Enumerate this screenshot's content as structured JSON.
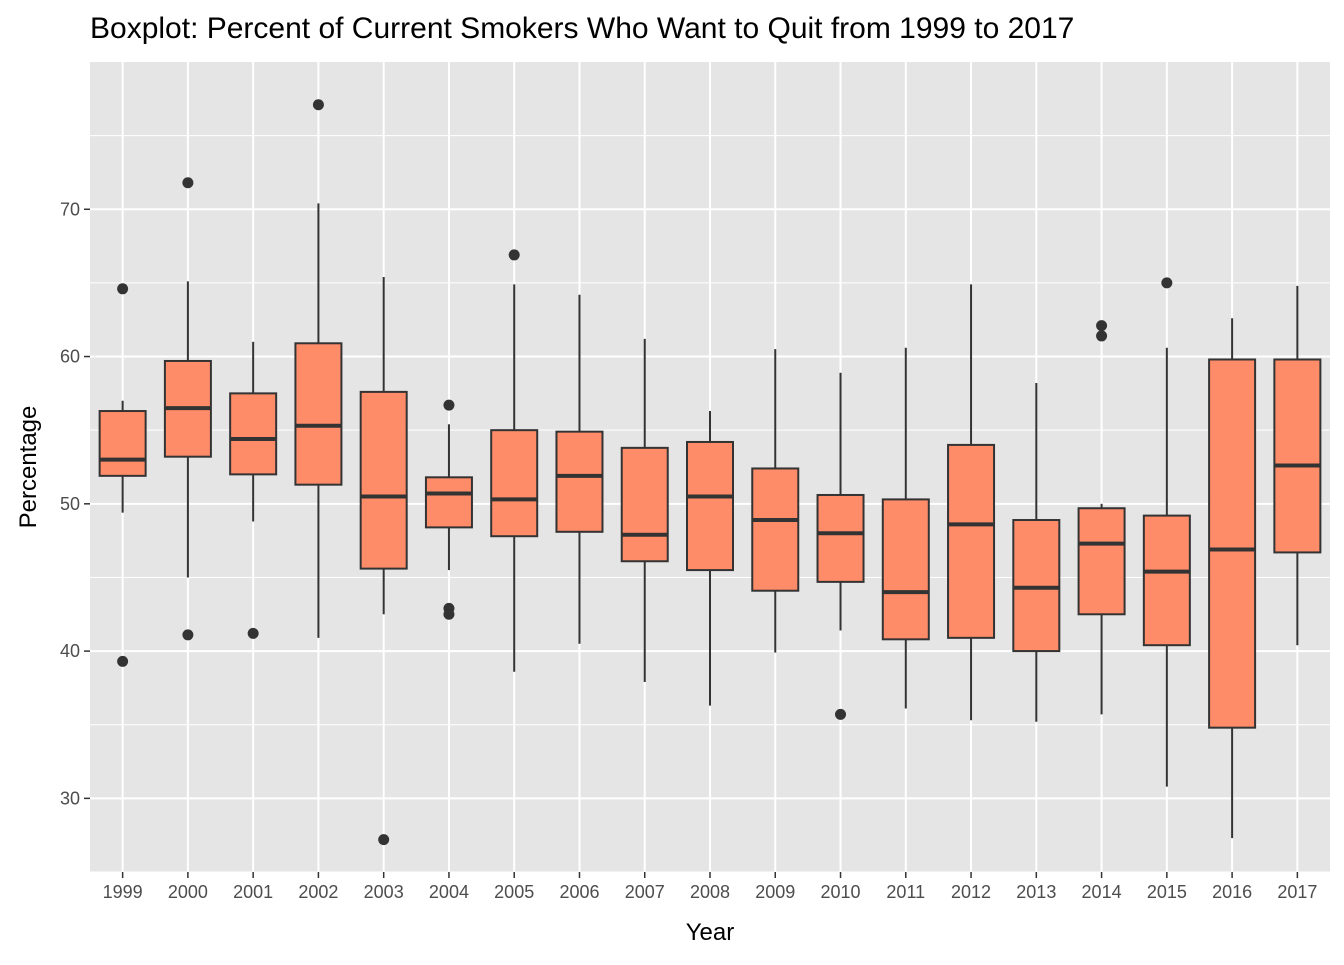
{
  "chart_data": {
    "type": "boxplot",
    "title": "Boxplot: Percent of Current Smokers Who Want to Quit from 1999 to 2017",
    "xlabel": "Year",
    "ylabel": "Percentage",
    "ylim": [
      25,
      80
    ],
    "yticks": [
      30,
      40,
      50,
      60,
      70
    ],
    "grid": true,
    "colors": {
      "panel": "#e5e5e5",
      "box_fill": "#ff8c69",
      "outline": "#333333",
      "grid": "#ffffff"
    },
    "boxes": [
      {
        "category": "1999",
        "whisker_low": 49.4,
        "q1": 51.9,
        "median": 53.0,
        "q3": 56.3,
        "whisker_high": 57.0,
        "outliers": [
          64.6,
          39.3
        ]
      },
      {
        "category": "2000",
        "whisker_low": 45.0,
        "q1": 53.2,
        "median": 56.5,
        "q3": 59.7,
        "whisker_high": 65.1,
        "outliers": [
          71.8,
          41.1
        ]
      },
      {
        "category": "2001",
        "whisker_low": 48.8,
        "q1": 52.0,
        "median": 54.4,
        "q3": 57.5,
        "whisker_high": 61.0,
        "outliers": [
          41.2
        ]
      },
      {
        "category": "2002",
        "whisker_low": 40.9,
        "q1": 51.3,
        "median": 55.3,
        "q3": 60.9,
        "whisker_high": 70.4,
        "outliers": [
          77.1
        ]
      },
      {
        "category": "2003",
        "whisker_low": 42.5,
        "q1": 45.6,
        "median": 50.5,
        "q3": 57.6,
        "whisker_high": 65.4,
        "outliers": [
          27.2
        ]
      },
      {
        "category": "2004",
        "whisker_low": 45.5,
        "q1": 48.4,
        "median": 50.7,
        "q3": 51.8,
        "whisker_high": 55.4,
        "outliers": [
          56.7,
          42.9,
          42.5
        ]
      },
      {
        "category": "2005",
        "whisker_low": 38.6,
        "q1": 47.8,
        "median": 50.3,
        "q3": 55.0,
        "whisker_high": 64.9,
        "outliers": [
          66.9
        ]
      },
      {
        "category": "2006",
        "whisker_low": 40.5,
        "q1": 48.1,
        "median": 51.9,
        "q3": 54.9,
        "whisker_high": 64.2,
        "outliers": []
      },
      {
        "category": "2007",
        "whisker_low": 37.9,
        "q1": 46.1,
        "median": 47.9,
        "q3": 53.8,
        "whisker_high": 61.2,
        "outliers": []
      },
      {
        "category": "2008",
        "whisker_low": 36.3,
        "q1": 45.5,
        "median": 50.5,
        "q3": 54.2,
        "whisker_high": 56.3,
        "outliers": []
      },
      {
        "category": "2009",
        "whisker_low": 39.9,
        "q1": 44.1,
        "median": 48.9,
        "q3": 52.4,
        "whisker_high": 60.5,
        "outliers": []
      },
      {
        "category": "2010",
        "whisker_low": 41.4,
        "q1": 44.7,
        "median": 48.0,
        "q3": 50.6,
        "whisker_high": 58.9,
        "outliers": [
          35.7
        ]
      },
      {
        "category": "2011",
        "whisker_low": 36.1,
        "q1": 40.8,
        "median": 44.0,
        "q3": 50.3,
        "whisker_high": 60.6,
        "outliers": []
      },
      {
        "category": "2012",
        "whisker_low": 35.3,
        "q1": 40.9,
        "median": 48.6,
        "q3": 54.0,
        "whisker_high": 64.9,
        "outliers": []
      },
      {
        "category": "2013",
        "whisker_low": 35.2,
        "q1": 40.0,
        "median": 44.3,
        "q3": 48.9,
        "whisker_high": 58.2,
        "outliers": []
      },
      {
        "category": "2014",
        "whisker_low": 35.7,
        "q1": 42.5,
        "median": 47.3,
        "q3": 49.7,
        "whisker_high": 50.0,
        "outliers": [
          62.1,
          61.4
        ]
      },
      {
        "category": "2015",
        "whisker_low": 30.8,
        "q1": 40.4,
        "median": 45.4,
        "q3": 49.2,
        "whisker_high": 60.6,
        "outliers": [
          65.0
        ]
      },
      {
        "category": "2016",
        "whisker_low": 27.3,
        "q1": 34.8,
        "median": 46.9,
        "q3": 59.8,
        "whisker_high": 62.6,
        "outliers": []
      },
      {
        "category": "2017",
        "whisker_low": 40.4,
        "q1": 46.7,
        "median": 52.6,
        "q3": 59.8,
        "whisker_high": 64.8,
        "outliers": []
      }
    ]
  }
}
